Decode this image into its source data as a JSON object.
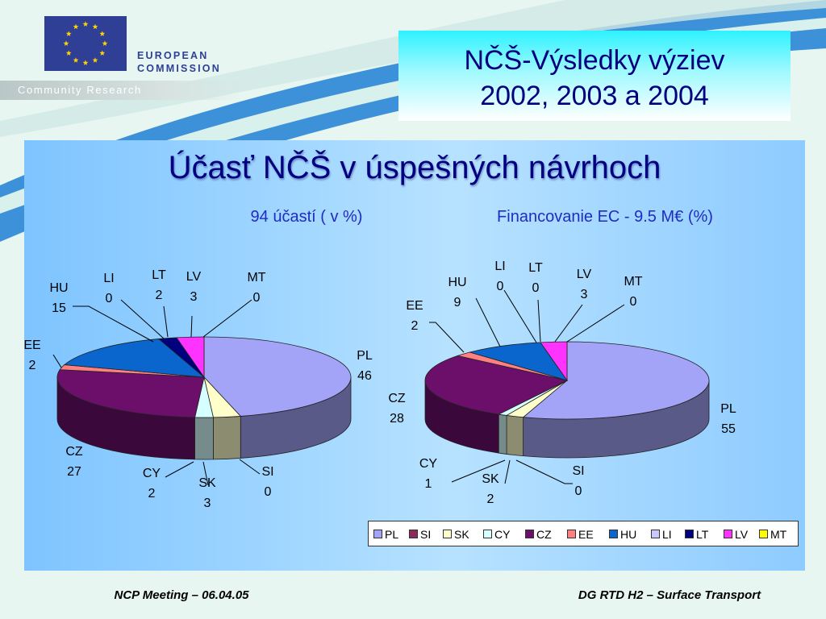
{
  "header": {
    "org_line1": "EUROPEAN",
    "org_line2": "COMMISSION",
    "band_label": "Community Research"
  },
  "title_box": {
    "line1": "NČŠ-Výsledky výziev",
    "line2": "2002, 2003 a 2004"
  },
  "main": {
    "title": "Účasť NČŠ v úspešných návrhoch"
  },
  "footer": {
    "left": "NCP Meeting – 06.04.05",
    "right": "DG RTD H2 – Surface Transport"
  },
  "colors": {
    "PL": "#a3a3f7",
    "SI": "#8c2a5a",
    "SK": "#ffffcc",
    "CY": "#d6ffff",
    "CZ": "#6b0f6b",
    "EE": "#ff8080",
    "HU": "#0a66cc",
    "LI": "#c8c8ff",
    "LT": "#00007f",
    "LV": "#ff33ff",
    "MT": "#ffff00"
  },
  "chart_data": [
    {
      "type": "pie",
      "title": "94 účastí ( v %)",
      "categories": [
        "PL",
        "SI",
        "SK",
        "CY",
        "CZ",
        "EE",
        "HU",
        "LI",
        "LT",
        "LV",
        "MT"
      ],
      "values": [
        46,
        0,
        3,
        2,
        27,
        2,
        15,
        0,
        2,
        3,
        0
      ]
    },
    {
      "type": "pie",
      "title": "Financovanie EC - 9.5 M€ (%)",
      "categories": [
        "PL",
        "SI",
        "SK",
        "CY",
        "CZ",
        "EE",
        "HU",
        "LI",
        "LT",
        "LV",
        "MT"
      ],
      "values": [
        55,
        0,
        2,
        1,
        28,
        2,
        9,
        0,
        0,
        3,
        0
      ],
      "legend": {
        "position": "bottom",
        "entries": [
          "PL",
          "SI",
          "SK",
          "CY",
          "CZ",
          "EE",
          "HU",
          "LI",
          "LT",
          "LV",
          "MT"
        ]
      }
    }
  ]
}
